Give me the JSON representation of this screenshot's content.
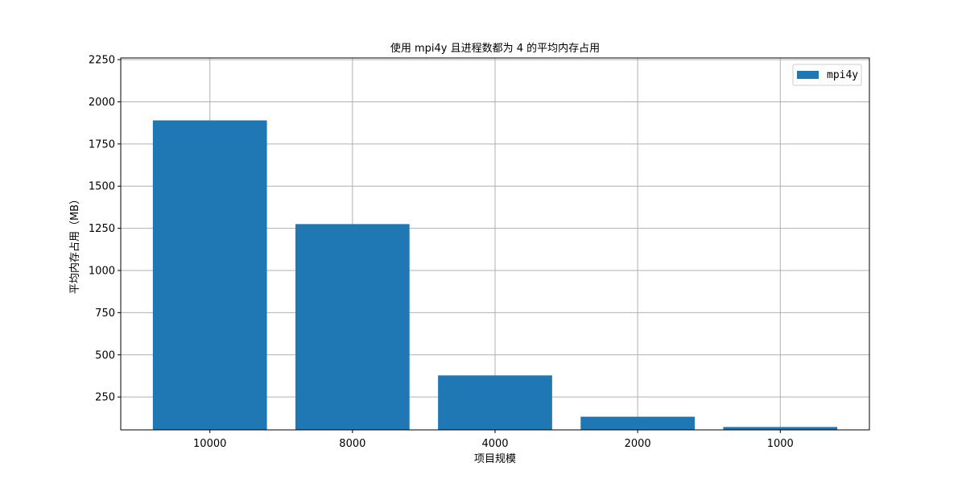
{
  "chart_data": {
    "type": "bar",
    "title": "使用 mpi4y 且进程数都为 4 的平均内存占用",
    "xlabel": "项目规模",
    "ylabel": "平均内存占用（MB）",
    "categories": [
      "10000",
      "8000",
      "4000",
      "2000",
      "1000"
    ],
    "series": [
      {
        "name": "mpi4y",
        "values": [
          1890,
          1275,
          378,
          133,
          72
        ]
      }
    ],
    "ylim": [
      55,
      2260
    ],
    "yticks": [
      250,
      500,
      750,
      1000,
      1250,
      1500,
      1750,
      2000,
      2250
    ],
    "grid": true,
    "legend_position": "top-right",
    "colors": {
      "bar": "#1f77b4",
      "grid": "#b0b0b0",
      "axis": "#000000"
    }
  }
}
